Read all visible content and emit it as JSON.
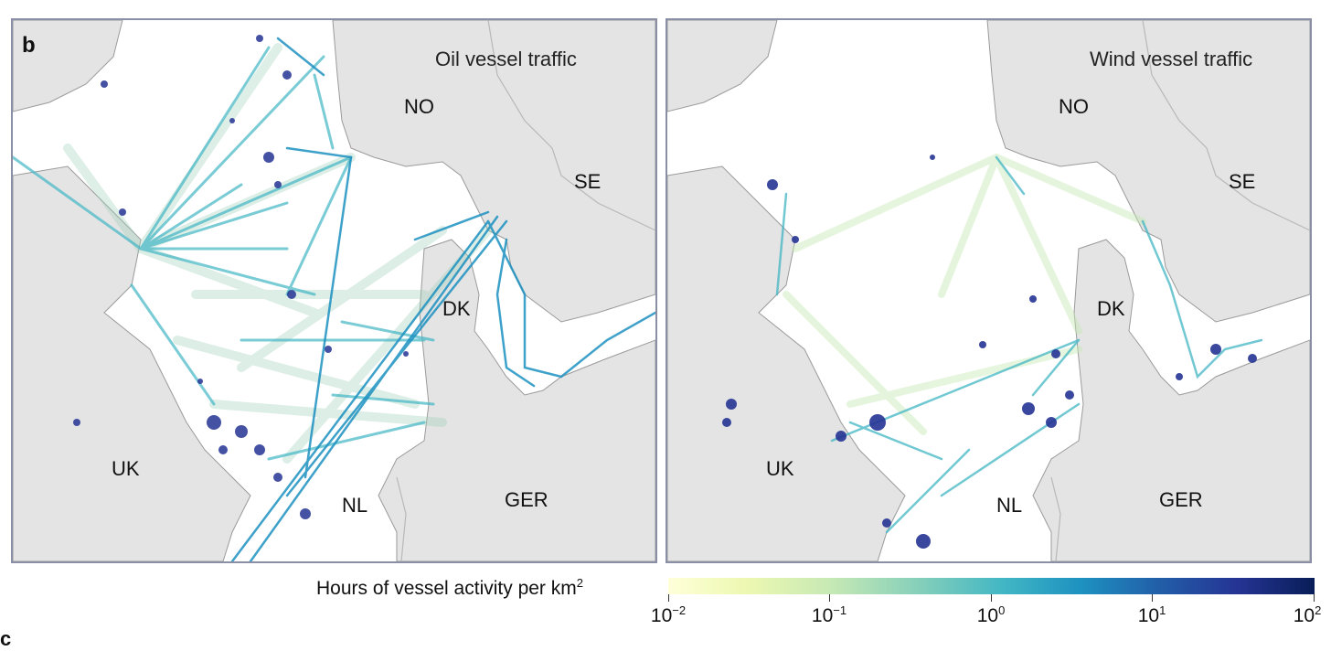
{
  "panel_letter": "b",
  "next_panel_letter": "c",
  "panels": [
    {
      "title": "Oil vessel traffic",
      "countries": [
        "NO",
        "SE",
        "DK",
        "UK",
        "NL",
        "GER"
      ]
    },
    {
      "title": "Wind vessel traffic",
      "countries": [
        "NO",
        "SE",
        "DK",
        "UK",
        "NL",
        "GER"
      ]
    }
  ],
  "legend": {
    "title": "Hours of vessel activity per km",
    "title_superscript": "2",
    "scale": "log",
    "range": [
      0.01,
      100
    ],
    "ticks": [
      {
        "base": "10",
        "exp": "−2"
      },
      {
        "base": "10",
        "exp": "−1"
      },
      {
        "base": "10",
        "exp": "0"
      },
      {
        "base": "10",
        "exp": "1"
      },
      {
        "base": "10",
        "exp": "2"
      }
    ],
    "colors": [
      "#ffffd9",
      "#c7e9b4",
      "#7fcdbb",
      "#41b6c4",
      "#1d91c0",
      "#225ea8",
      "#253494",
      "#081d58"
    ]
  },
  "colors": {
    "land": "#e4e4e4",
    "coast": "#9a9a9a",
    "sea": "#ffffff",
    "frame": "#8a8fa6"
  }
}
